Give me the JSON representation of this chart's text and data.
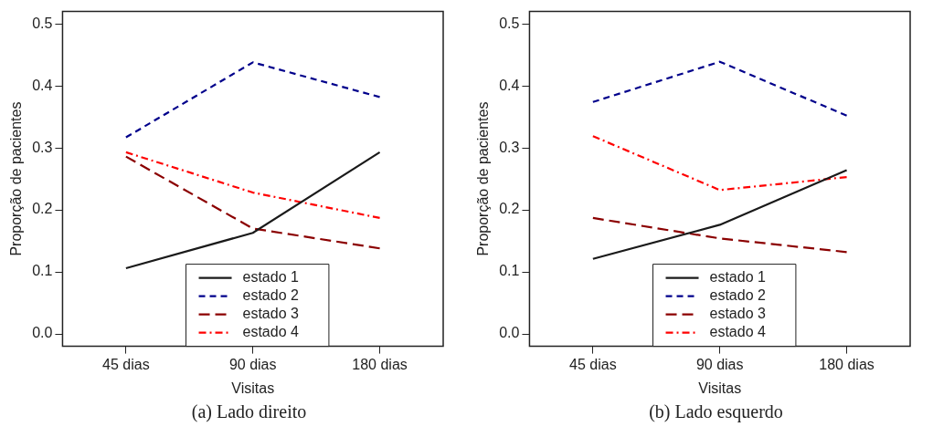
{
  "chart_data": [
    {
      "type": "line",
      "title": "(a) Lado direito",
      "xlabel": "Visitas",
      "ylabel": "Proporção de pacientes",
      "categories": [
        "45 dias",
        "90 dias",
        "180 dias"
      ],
      "ylim": [
        -0.02,
        0.52
      ],
      "yticks": [
        {
          "value": 0,
          "label": "0.0"
        },
        0.1,
        0.2,
        0.3,
        0.4,
        0.5
      ],
      "grid": false,
      "legend": "bottom",
      "marker": "none",
      "series": [
        {
          "name": "estado 1",
          "color": "#1a1a1a",
          "line_style": "solid",
          "values": [
            0.106,
            0.163,
            0.293
          ]
        },
        {
          "name": "estado 2",
          "color": "#00008b",
          "line_style": "dashed",
          "values": [
            0.317,
            0.438,
            0.382
          ]
        },
        {
          "name": "estado 3",
          "color": "#8b0000",
          "line_style": "dashed",
          "values": [
            0.286,
            0.17,
            0.138
          ]
        },
        {
          "name": "estado 4",
          "color": "#ff0000",
          "line_style": "dotted",
          "values": [
            0.293,
            0.228,
            0.187
          ]
        }
      ]
    },
    {
      "type": "line",
      "title": "(b) Lado esquerdo",
      "xlabel": "Visitas",
      "ylabel": "Proporção de pacientes",
      "categories": [
        "45 dias",
        "90 dias",
        "180 dias"
      ],
      "ylim": [
        -0.02,
        0.52
      ],
      "yticks": [
        {
          "value": 0,
          "label": "0.0"
        },
        0.1,
        0.2,
        0.3,
        0.4,
        0.5
      ],
      "grid": false,
      "legend": "bottom",
      "marker": "none",
      "series": [
        {
          "name": "estado 1",
          "color": "#1a1a1a",
          "line_style": "solid",
          "values": [
            0.121,
            0.176,
            0.264
          ]
        },
        {
          "name": "estado 2",
          "color": "#00008b",
          "line_style": "dashed",
          "values": [
            0.374,
            0.439,
            0.352
          ]
        },
        {
          "name": "estado 3",
          "color": "#8b0000",
          "line_style": "dashed",
          "values": [
            0.187,
            0.154,
            0.132
          ]
        },
        {
          "name": "estado 4",
          "color": "#ff0000",
          "line_style": "dotted",
          "values": [
            0.319,
            0.232,
            0.253
          ]
        }
      ]
    }
  ]
}
